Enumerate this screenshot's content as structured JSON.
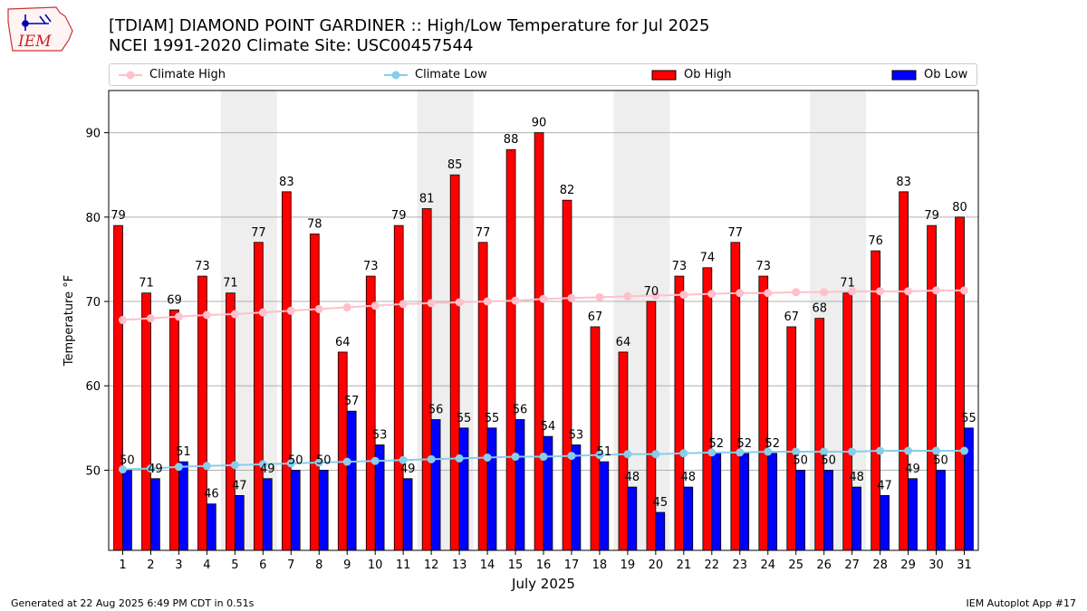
{
  "header": {
    "logo_text": "IEM",
    "title_line1": "[TDIAM] DIAMOND POINT GARDINER  :: High/Low Temperature for Jul 2025",
    "title_line2": "NCEI 1991-2020 Climate Site: USC00457544"
  },
  "footer": {
    "generated": "Generated at 22 Aug 2025 6:49 PM CDT in 0.51s",
    "app": "IEM Autoplot App #17"
  },
  "chart_data": {
    "type": "bar",
    "xlabel": "July 2025",
    "ylabel": "Temperature °F",
    "ylim": [
      40.5,
      95
    ],
    "yticks": [
      50,
      60,
      70,
      80,
      90
    ],
    "grid": "horizontal",
    "legend_position": "top",
    "categories": [
      "1",
      "2",
      "3",
      "4",
      "5",
      "6",
      "7",
      "8",
      "9",
      "10",
      "11",
      "12",
      "13",
      "14",
      "15",
      "16",
      "17",
      "18",
      "19",
      "20",
      "21",
      "22",
      "23",
      "24",
      "25",
      "26",
      "27",
      "28",
      "29",
      "30",
      "31"
    ],
    "weekend_bands": [
      [
        5,
        6
      ],
      [
        12,
        13
      ],
      [
        19,
        20
      ],
      [
        26,
        27
      ]
    ],
    "series": [
      {
        "name": "Climate High",
        "kind": "line",
        "color": "#ffc0cb",
        "values": [
          67.8,
          68.0,
          68.2,
          68.4,
          68.5,
          68.7,
          68.9,
          69.1,
          69.3,
          69.5,
          69.7,
          69.8,
          69.9,
          70.0,
          70.1,
          70.3,
          70.4,
          70.5,
          70.6,
          70.7,
          70.8,
          70.9,
          71.0,
          71.0,
          71.1,
          71.1,
          71.2,
          71.2,
          71.2,
          71.3,
          71.3
        ]
      },
      {
        "name": "Climate Low",
        "kind": "line",
        "color": "#87ceeb",
        "values": [
          50.1,
          50.2,
          50.4,
          50.5,
          50.6,
          50.7,
          50.8,
          50.9,
          51.0,
          51.1,
          51.2,
          51.3,
          51.4,
          51.5,
          51.6,
          51.6,
          51.7,
          51.8,
          51.9,
          51.9,
          52.0,
          52.1,
          52.1,
          52.2,
          52.2,
          52.2,
          52.2,
          52.3,
          52.3,
          52.3,
          52.3
        ]
      },
      {
        "name": "Ob High",
        "kind": "bar",
        "color": "#ff0000",
        "values": [
          79,
          71,
          69,
          73,
          71,
          77,
          83,
          78,
          64,
          73,
          79,
          81,
          85,
          77,
          88,
          90,
          82,
          67,
          64,
          70,
          73,
          74,
          77,
          73,
          67,
          68,
          71,
          76,
          83,
          79,
          80
        ]
      },
      {
        "name": "Ob Low",
        "kind": "bar",
        "color": "#0000ff",
        "values": [
          50,
          49,
          51,
          46,
          47,
          49,
          50,
          50,
          57,
          53,
          49,
          56,
          55,
          55,
          56,
          54,
          53,
          51,
          48,
          45,
          48,
          52,
          52,
          52,
          50,
          50,
          48,
          47,
          49,
          50,
          55
        ]
      }
    ]
  }
}
